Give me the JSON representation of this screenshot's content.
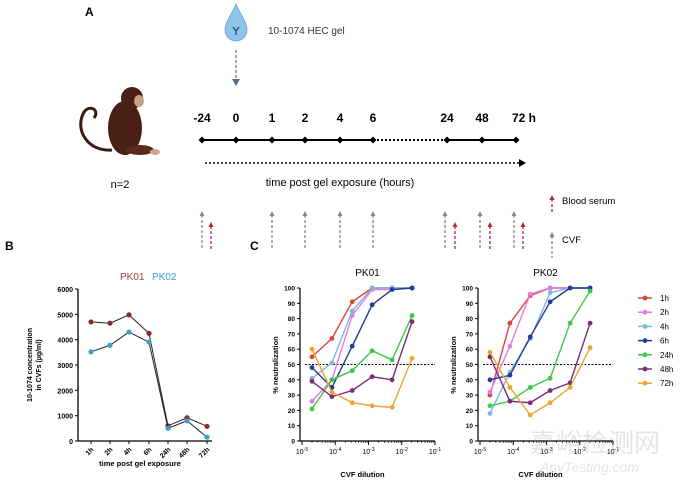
{
  "panel_a": {
    "label": "A",
    "gel_label": "10-1074 HEC gel",
    "n_label": "n=2",
    "timepoints": [
      "-24",
      "0",
      "1",
      "2",
      "4",
      "6",
      "24",
      "48",
      "72 h"
    ],
    "axis_label": "time post gel exposure (hours)",
    "legend": {
      "blood": "Blood serum",
      "cvf": "CVF"
    },
    "colors": {
      "blood": "#b3262b",
      "cvf": "#7d8896",
      "drop": "#8fc3ea",
      "monkey": "#4a1f16"
    }
  },
  "chart_data": [
    {
      "panel": "B",
      "type": "line",
      "title": "",
      "legend": [
        {
          "name": "PK01",
          "color": "#9b3b3b"
        },
        {
          "name": "PK02",
          "color": "#3aa0d0"
        }
      ],
      "categories": [
        "1h",
        "2h",
        "4h",
        "6h",
        "24h",
        "48h",
        "72h"
      ],
      "series": [
        {
          "name": "PK01",
          "color": "#8a2a2a",
          "values": [
            4700,
            4650,
            4980,
            4250,
            600,
            920,
            580
          ]
        },
        {
          "name": "PK02",
          "color": "#3aa0d0",
          "values": [
            3520,
            3780,
            4300,
            3900,
            500,
            800,
            150
          ]
        }
      ],
      "xlabel": "time post gel exposure",
      "ylabel_lines": [
        "10-1074 concentration",
        "in CVFs (µg/ml)"
      ],
      "yticks": [
        "0",
        "1000",
        "2000",
        "3000",
        "4000",
        "5000",
        "6000"
      ],
      "ylim": [
        0,
        6000
      ]
    },
    {
      "panel": "C",
      "type": "line",
      "subplots": [
        {
          "title": "PK01",
          "series": [
            {
              "name": "1h",
              "values": [
                55,
                67,
                91,
                100,
                100,
                100
              ]
            },
            {
              "name": "2h",
              "values": [
                26,
                40,
                82,
                99,
                99,
                100
              ]
            },
            {
              "name": "4h",
              "values": [
                41,
                51,
                85,
                100,
                100,
                100
              ]
            },
            {
              "name": "6h",
              "values": [
                48,
                35,
                62,
                89,
                99,
                100
              ]
            },
            {
              "name": "24h",
              "values": [
                21,
                40,
                46,
                59,
                53,
                82
              ]
            },
            {
              "name": "48h",
              "values": [
                39,
                29,
                33,
                42,
                40,
                78
              ]
            },
            {
              "name": "72h",
              "values": [
                60,
                32,
                25,
                23,
                22,
                54
              ]
            }
          ]
        },
        {
          "title": "PK02",
          "series": [
            {
              "name": "1h",
              "values": [
                30,
                77,
                95,
                100,
                100,
                100
              ]
            },
            {
              "name": "2h",
              "values": [
                32,
                62,
                96,
                100,
                100,
                100
              ]
            },
            {
              "name": "4h",
              "values": [
                18,
                45,
                67,
                97,
                100,
                100
              ]
            },
            {
              "name": "6h",
              "values": [
                40,
                43,
                68,
                91,
                100,
                100
              ]
            },
            {
              "name": "24h",
              "values": [
                23,
                26,
                35,
                41,
                77,
                98
              ]
            },
            {
              "name": "48h",
              "values": [
                55,
                26,
                25,
                33,
                38,
                77
              ]
            },
            {
              "name": "72h",
              "values": [
                58,
                35,
                17,
                25,
                35,
                61
              ]
            }
          ]
        }
      ],
      "x_log10": [
        -4.7,
        -4.1,
        -3.49,
        -2.89,
        -2.29,
        -1.69
      ],
      "xlim_log10": [
        -5,
        -1
      ],
      "xticks": [
        {
          "base": "10",
          "exp": "-5"
        },
        {
          "base": "10",
          "exp": "-4"
        },
        {
          "base": "10",
          "exp": "-3"
        },
        {
          "base": "10",
          "exp": "-2"
        },
        {
          "base": "10",
          "exp": "-1"
        }
      ],
      "yticks": [
        "0",
        "10",
        "20",
        "30",
        "40",
        "50",
        "60",
        "70",
        "80",
        "90",
        "100"
      ],
      "ylim": [
        0,
        100
      ],
      "threshold": 50,
      "xlabel": "CVF dilution",
      "ylabel": "% neutralization",
      "legend_placement": "right",
      "colors": {
        "1h": "#d9453a",
        "2h": "#e47be0",
        "4h": "#7db6de",
        "6h": "#1f3c96",
        "24h": "#3cc945",
        "48h": "#7a2a78",
        "72h": "#eea431"
      }
    }
  ],
  "labels": {
    "b": "B",
    "c": "C"
  },
  "watermark": {
    "cn": "嘉峪检测网",
    "en": "AnyTesting.com"
  }
}
